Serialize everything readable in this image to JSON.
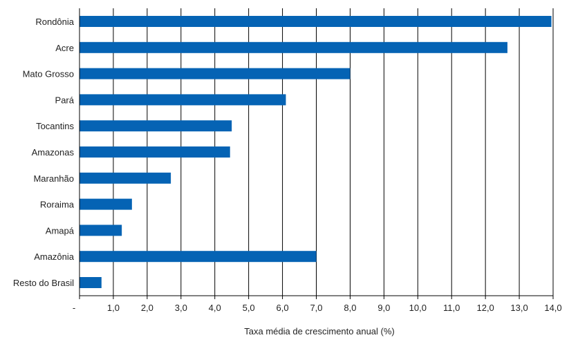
{
  "chart_data": {
    "type": "bar",
    "orientation": "horizontal",
    "categories": [
      "Rondônia",
      "Acre",
      "Mato Grosso",
      "Pará",
      "Tocantins",
      "Amazonas",
      "Maranhão",
      "Roraima",
      "Amapá",
      "Amazônia",
      "Resto do Brasil"
    ],
    "values": [
      13.95,
      12.65,
      8.0,
      6.1,
      4.5,
      4.45,
      2.7,
      1.55,
      1.25,
      7.0,
      0.65
    ],
    "xlabel": "Taxa média de crescimento anual (%)",
    "ylabel": "",
    "xlim": [
      0,
      14
    ],
    "x_tick_labels": [
      "-",
      "1,0",
      "2,0",
      "3,0",
      "4,0",
      "5,0",
      "6,0",
      "7,0",
      "8,0",
      "9,0",
      "10,0",
      "11,0",
      "12,0",
      "13,0",
      "14,0"
    ],
    "grid": "vertical",
    "legend": "none",
    "bar_color": "#0563b4"
  }
}
